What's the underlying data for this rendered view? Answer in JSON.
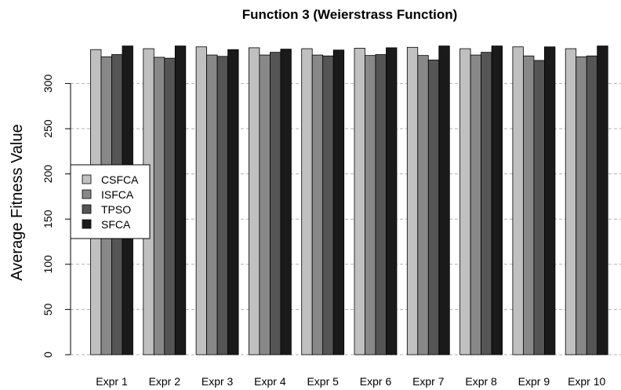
{
  "chart_data": {
    "type": "bar",
    "title": "Function 3 (Weierstrass Function)",
    "xlabel": "",
    "ylabel": "Average Fitness Value",
    "ylim": [
      0,
      342
    ],
    "yticks": [
      0,
      50,
      100,
      150,
      200,
      250,
      300
    ],
    "grid": "horizontal dashed",
    "legend_position": "left-center",
    "categories": [
      "Expr 1",
      "Expr 2",
      "Expr 3",
      "Expr 4",
      "Expr 5",
      "Expr 6",
      "Expr 7",
      "Expr 8",
      "Expr 9",
      "Expr 10"
    ],
    "series": [
      {
        "name": "CSFCA",
        "color": "#c0c0c0",
        "values": [
          337.5,
          338.5,
          340.5,
          339.5,
          338.5,
          339,
          340,
          338.5,
          340.5,
          338.5
        ]
      },
      {
        "name": "ISFCA",
        "color": "#888888",
        "values": [
          329.5,
          329,
          331.5,
          331.5,
          331.5,
          331,
          331,
          331.5,
          330.5,
          329.5
        ]
      },
      {
        "name": "TPSO",
        "color": "#555555",
        "values": [
          332,
          328,
          330,
          334.5,
          330.5,
          332,
          326,
          334.5,
          325.5,
          330.5
        ]
      },
      {
        "name": "SFCA",
        "color": "#1a1a1a",
        "values": [
          341.5,
          341.5,
          337.5,
          338,
          337,
          339.5,
          341.5,
          341.5,
          340.5,
          341.5
        ]
      }
    ]
  }
}
